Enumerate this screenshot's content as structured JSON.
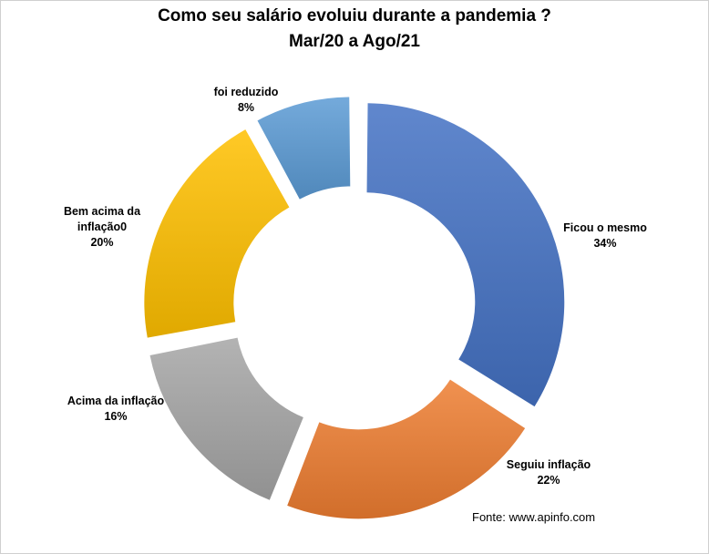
{
  "chart_data": {
    "type": "pie",
    "subtype": "donut",
    "title": "Como seu salário evoluiu durante a pandemia ?",
    "subtitle": "Mar/20 a Ago/21",
    "slices": [
      {
        "label": "Ficou o mesmo",
        "value": 34,
        "value_label": "34%",
        "color": "#4472c4"
      },
      {
        "label": "Seguiu inflação",
        "value": 22,
        "value_label": "22%",
        "color": "#ed7d31"
      },
      {
        "label": "Acima da inflação",
        "value": 16,
        "value_label": "16%",
        "color": "#a5a5a5"
      },
      {
        "label": "Bem acima da inflação0",
        "value": 20,
        "value_label": "20%",
        "color": "#ffc000"
      },
      {
        "label": "foi reduzido",
        "value": 8,
        "value_label": "8%",
        "color": "#5b9bd5"
      }
    ],
    "labels": {
      "s0": "Ficou o mesmo",
      "s1": "Seguiu inflação",
      "s2": "Acima da inflação",
      "s3a": "Bem acima da",
      "s3b": "inflação0",
      "s4": "foi reduzido"
    },
    "source": "Fonte: www.apinfo.com"
  }
}
